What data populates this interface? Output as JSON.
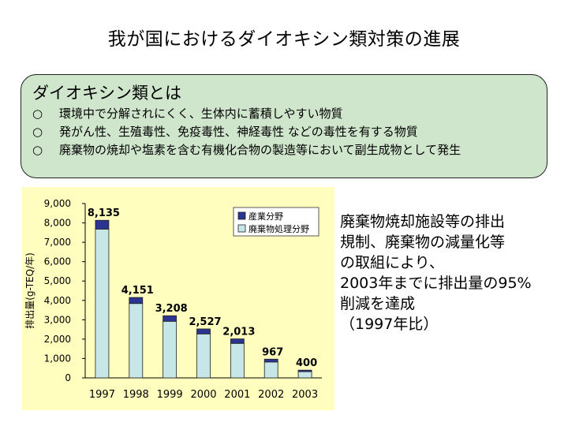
{
  "title": "我が国におけるダイオキシン類対策の進展",
  "info_box": {
    "heading": "ダイオキシン類とは",
    "bullet_glyph": "○",
    "items": [
      "環境中で分解されにくく、生体内に蓄積しやすい物質",
      "発がん性、生殖毒性、免疫毒性、神経毒性 などの毒性を有する物質",
      "廃棄物の焼却や塩素を含む有機化合物の製造等において副生成物として発生"
    ]
  },
  "side_text": [
    "廃棄物焼却施設等の排出",
    "規制、廃棄物の減量化等",
    "の取組により、",
    "2003年までに排出量の95%",
    "削減を達成",
    "（1997年比）"
  ],
  "chart_data": {
    "type": "bar",
    "stacked": true,
    "categories": [
      "1997",
      "1998",
      "1999",
      "2000",
      "2001",
      "2002",
      "2003"
    ],
    "series": [
      {
        "name": "廃棄物処理分野",
        "color": "#c7e6e8",
        "values": [
          7680,
          3840,
          2920,
          2270,
          1780,
          820,
          320
        ]
      },
      {
        "name": "産業分野",
        "color": "#2b3490",
        "values": [
          455,
          311,
          288,
          257,
          233,
          147,
          80
        ]
      }
    ],
    "totals": [
      8135,
      4151,
      3208,
      2527,
      2013,
      967,
      400
    ],
    "total_labels": [
      "8,135",
      "4,151",
      "3,208",
      "2,527",
      "2,013",
      "967",
      "400"
    ],
    "yticks": [
      "0",
      "1,000",
      "2,000",
      "3,000",
      "4,000",
      "5,000",
      "6,000",
      "7,000",
      "8,000",
      "9,000"
    ],
    "ylim": [
      0,
      9000
    ],
    "ylabel": "排出量(g-TEQ/年)",
    "xlabel": "",
    "legend_position": "top-right",
    "grid": false
  }
}
